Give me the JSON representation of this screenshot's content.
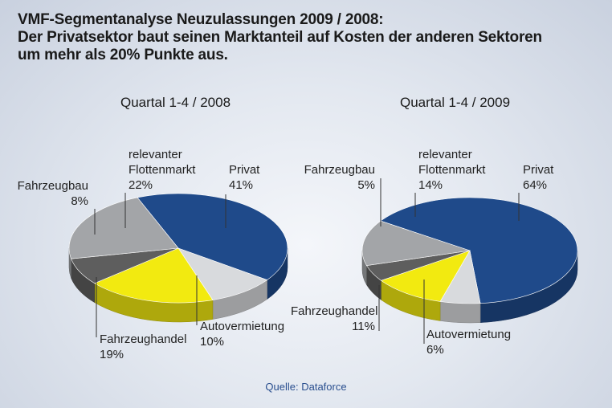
{
  "title_lines": [
    "VMF-Segmentanalyse Neuzulassungen 2009 / 2008:",
    "Der Privatsektor baut seinen Marktanteil auf Kosten der anderen Sektoren",
    "um mehr als 20% Punkte aus."
  ],
  "source": "Quelle: Dataforce",
  "colors": {
    "Privat": "#1f4a8a",
    "Autovermietung": "#d8dadd",
    "Fahrzeughandel": "#f2ea10",
    "Fahrzeugbau": "#5e5e5e",
    "relevanter Flottenmarkt": "#a3a5a8"
  },
  "chart_data": [
    {
      "type": "pie",
      "title": "Quartal 1-4 / 2008",
      "slices": [
        {
          "label": "Privat",
          "value": 41,
          "text": "41%"
        },
        {
          "label": "Autovermietung",
          "value": 10,
          "text": "10%"
        },
        {
          "label": "Fahrzeughandel",
          "value": 19,
          "text": "19%"
        },
        {
          "label": "Fahrzeugbau",
          "value": 8,
          "text": "8%"
        },
        {
          "label": "relevanter Flottenmarkt",
          "value": 22,
          "text": "22%"
        }
      ],
      "label_texts": {
        "Privat": "Privat",
        "Autovermietung": "Autovermietung",
        "Fahrzeughandel": "Fahrzeughandel",
        "Fahrzeugbau": "Fahrzeugbau",
        "relevanter Flottenmarkt": [
          "relevanter",
          "Flottenmarkt"
        ]
      }
    },
    {
      "type": "pie",
      "title": "Quartal 1-4 / 2009",
      "slices": [
        {
          "label": "Privat",
          "value": 64,
          "text": "64%"
        },
        {
          "label": "Autovermietung",
          "value": 6,
          "text": "6%"
        },
        {
          "label": "Fahrzeughandel",
          "value": 11,
          "text": "11%"
        },
        {
          "label": "Fahrzeugbau",
          "value": 5,
          "text": "5%"
        },
        {
          "label": "relevanter Flottenmarkt",
          "value": 14,
          "text": "14%"
        }
      ],
      "label_texts": {
        "Privat": "Privat",
        "Autovermietung": "Autovermietung",
        "Fahrzeughandel": "Fahrzeughandel",
        "Fahrzeugbau": "Fahrzeugbau",
        "relevanter Flottenmarkt": [
          "relevanter",
          "Flottenmarkt"
        ]
      }
    }
  ]
}
